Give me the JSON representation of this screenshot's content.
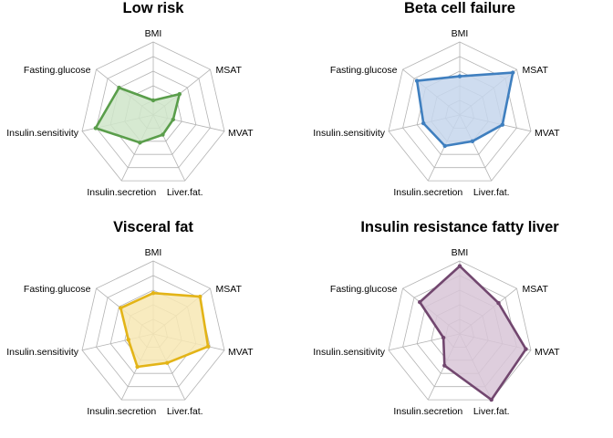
{
  "chart_data": [
    {
      "type": "radar",
      "title": "Low risk",
      "axes": [
        "BMI",
        "MSAT",
        "MVAT",
        "Liver.fat.",
        "Insulin.secretion",
        "Insulin.sensitivity",
        "Fasting.glucose"
      ],
      "range": [
        0,
        1
      ],
      "grid_levels": 5,
      "series": [
        {
          "values": [
            0.2,
            0.46,
            0.28,
            0.3,
            0.42,
            0.81,
            0.6
          ]
        }
      ],
      "color": "#5a9e4b",
      "fill": "#cfe5c9"
    },
    {
      "type": "radar",
      "title": "Beta cell failure",
      "axes": [
        "BMI",
        "MSAT",
        "MVAT",
        "Liver.fat.",
        "Insulin.secretion",
        "Insulin.sensitivity",
        "Fasting.glucose"
      ],
      "range": [
        0,
        1
      ],
      "grid_levels": 5,
      "series": [
        {
          "values": [
            0.53,
            0.93,
            0.6,
            0.4,
            0.47,
            0.51,
            0.75
          ]
        }
      ],
      "color": "#3f7fbf",
      "fill": "#c5d6ec"
    },
    {
      "type": "radar",
      "title": "Visceral fat",
      "axes": [
        "BMI",
        "MSAT",
        "MVAT",
        "Liver.fat.",
        "Insulin.secretion",
        "Insulin.sensitivity",
        "Fasting.glucose"
      ],
      "range": [
        0,
        1
      ],
      "grid_levels": 5,
      "series": [
        {
          "values": [
            0.56,
            0.82,
            0.77,
            0.44,
            0.5,
            0.35,
            0.57
          ]
        }
      ],
      "color": "#e3b417",
      "fill": "#f7e8b4"
    },
    {
      "type": "radar",
      "title": "Insulin resistance fatty liver",
      "axes": [
        "BMI",
        "MSAT",
        "MVAT",
        "Liver.fat.",
        "Insulin.secretion",
        "Insulin.sensitivity",
        "Fasting.glucose"
      ],
      "range": [
        0,
        1
      ],
      "grid_levels": 5,
      "series": [
        {
          "values": [
            0.93,
            0.68,
            0.93,
            1.0,
            0.48,
            0.23,
            0.7
          ]
        }
      ],
      "color": "#72476f",
      "fill": "#d8c5d7"
    }
  ]
}
